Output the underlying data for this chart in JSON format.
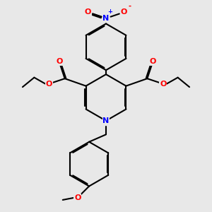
{
  "background_color": "#e8e8e8",
  "bond_color": "#000000",
  "bond_width": 1.5,
  "dbo": 0.055,
  "atom_colors": {
    "O": "#ff0000",
    "N": "#0000ff",
    "C": "#000000"
  },
  "fs": 7.5,
  "fss": 6.0,
  "xlim": [
    0,
    10
  ],
  "ylim": [
    0,
    10
  ]
}
